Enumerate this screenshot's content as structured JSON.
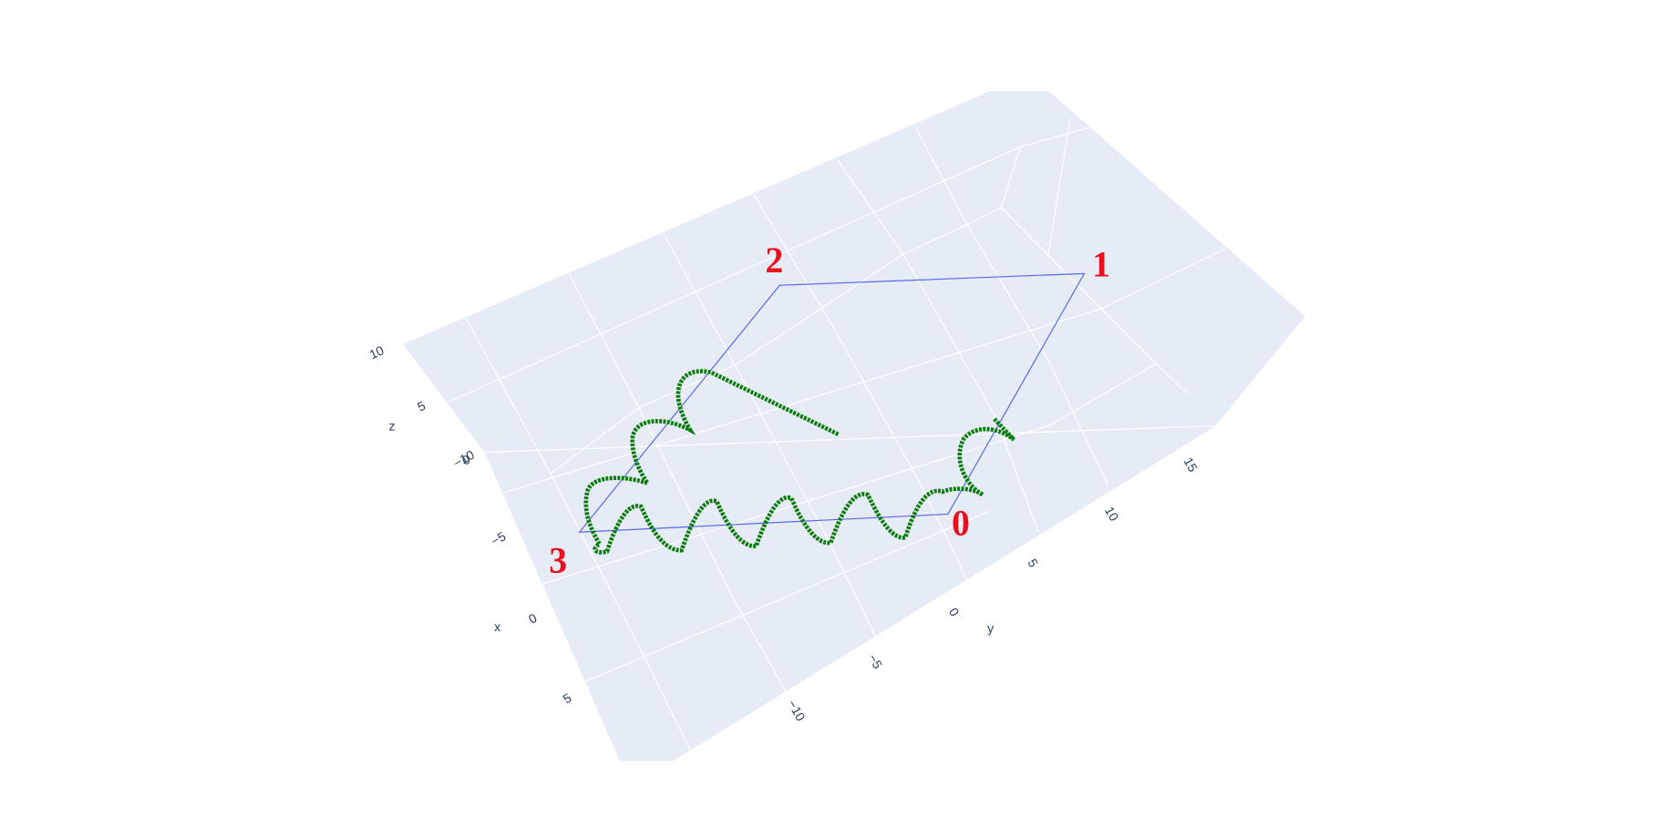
{
  "chart_data": {
    "type": "scatter3d",
    "x_label": "x",
    "y_label": "y",
    "z_label": "z",
    "xticks": [
      {
        "value": -10,
        "label": "−10"
      },
      {
        "value": -5,
        "label": "−5"
      },
      0,
      5
    ],
    "yticks": [
      {
        "value": -10,
        "label": "−10"
      },
      {
        "value": -5,
        "label": "−5"
      },
      0,
      5,
      10,
      15
    ],
    "zticks": [
      0,
      5,
      10
    ],
    "annotations": [
      "0",
      "1",
      "2",
      "3"
    ],
    "annotation_color": "#e8101e",
    "trace_color": "#0a7a0a",
    "outline_color": "#5566ee"
  }
}
